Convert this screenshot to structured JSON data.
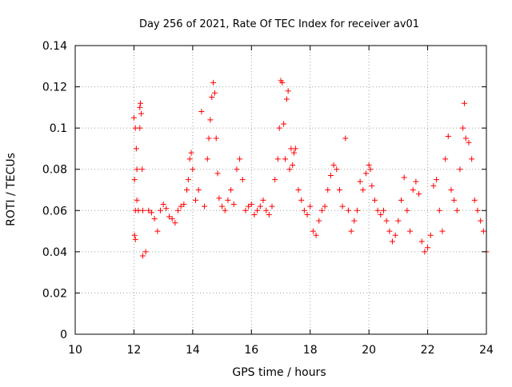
{
  "chart_data": {
    "type": "scatter",
    "title": "Day 256 of 2021, Rate Of TEC Index for receiver av01",
    "xlabel": "GPS time / hours",
    "ylabel": "ROTI / TECUs",
    "xlim": [
      10,
      24
    ],
    "ylim": [
      0,
      0.14
    ],
    "xticks": [
      "10",
      "12",
      "14",
      "16",
      "18",
      "20",
      "22",
      "24"
    ],
    "yticks": [
      "0",
      "0.02",
      "0.04",
      "0.06",
      "0.08",
      "0.1",
      "0.12",
      "0.14"
    ],
    "grid": true,
    "marker": "+",
    "color": "#ff0000",
    "series": [
      {
        "name": "",
        "points": [
          [
            12.0,
            0.105
          ],
          [
            12.05,
            0.1
          ],
          [
            12.08,
            0.09
          ],
          [
            12.1,
            0.08
          ],
          [
            12.02,
            0.075
          ],
          [
            12.1,
            0.065
          ],
          [
            12.05,
            0.06
          ],
          [
            12.15,
            0.06
          ],
          [
            12.2,
            0.11
          ],
          [
            12.22,
            0.112
          ],
          [
            12.25,
            0.107
          ],
          [
            12.2,
            0.1
          ],
          [
            12.28,
            0.08
          ],
          [
            12.3,
            0.06
          ],
          [
            12.02,
            0.048
          ],
          [
            12.05,
            0.046
          ],
          [
            12.3,
            0.038
          ],
          [
            12.4,
            0.04
          ],
          [
            12.5,
            0.06
          ],
          [
            12.6,
            0.059
          ],
          [
            12.7,
            0.056
          ],
          [
            12.8,
            0.05
          ],
          [
            12.9,
            0.06
          ],
          [
            13.0,
            0.063
          ],
          [
            13.1,
            0.061
          ],
          [
            13.2,
            0.057
          ],
          [
            13.3,
            0.056
          ],
          [
            13.4,
            0.054
          ],
          [
            13.5,
            0.06
          ],
          [
            13.6,
            0.062
          ],
          [
            13.7,
            0.063
          ],
          [
            13.8,
            0.07
          ],
          [
            13.85,
            0.075
          ],
          [
            13.9,
            0.085
          ],
          [
            13.95,
            0.088
          ],
          [
            14.0,
            0.08
          ],
          [
            14.1,
            0.065
          ],
          [
            14.2,
            0.07
          ],
          [
            14.3,
            0.108
          ],
          [
            14.4,
            0.062
          ],
          [
            14.5,
            0.085
          ],
          [
            14.55,
            0.095
          ],
          [
            14.6,
            0.104
          ],
          [
            14.65,
            0.115
          ],
          [
            14.7,
            0.122
          ],
          [
            14.75,
            0.117
          ],
          [
            14.8,
            0.095
          ],
          [
            14.85,
            0.078
          ],
          [
            14.9,
            0.066
          ],
          [
            15.0,
            0.062
          ],
          [
            15.1,
            0.06
          ],
          [
            15.2,
            0.065
          ],
          [
            15.3,
            0.07
          ],
          [
            15.4,
            0.063
          ],
          [
            15.5,
            0.08
          ],
          [
            15.6,
            0.085
          ],
          [
            15.7,
            0.075
          ],
          [
            15.8,
            0.06
          ],
          [
            15.9,
            0.062
          ],
          [
            16.0,
            0.063
          ],
          [
            16.1,
            0.058
          ],
          [
            16.2,
            0.06
          ],
          [
            16.3,
            0.062
          ],
          [
            16.4,
            0.065
          ],
          [
            16.5,
            0.06
          ],
          [
            16.6,
            0.058
          ],
          [
            16.7,
            0.062
          ],
          [
            16.8,
            0.075
          ],
          [
            16.9,
            0.085
          ],
          [
            16.95,
            0.1
          ],
          [
            17.0,
            0.123
          ],
          [
            17.05,
            0.122
          ],
          [
            17.1,
            0.102
          ],
          [
            17.15,
            0.085
          ],
          [
            17.2,
            0.114
          ],
          [
            17.25,
            0.118
          ],
          [
            17.3,
            0.08
          ],
          [
            17.35,
            0.09
          ],
          [
            17.4,
            0.082
          ],
          [
            17.45,
            0.088
          ],
          [
            17.5,
            0.09
          ],
          [
            17.6,
            0.07
          ],
          [
            17.7,
            0.065
          ],
          [
            17.8,
            0.06
          ],
          [
            17.9,
            0.058
          ],
          [
            18.0,
            0.062
          ],
          [
            18.1,
            0.05
          ],
          [
            18.2,
            0.048
          ],
          [
            18.3,
            0.055
          ],
          [
            18.4,
            0.06
          ],
          [
            18.5,
            0.062
          ],
          [
            18.6,
            0.07
          ],
          [
            18.7,
            0.077
          ],
          [
            18.8,
            0.082
          ],
          [
            18.9,
            0.08
          ],
          [
            19.0,
            0.07
          ],
          [
            19.1,
            0.062
          ],
          [
            19.2,
            0.095
          ],
          [
            19.3,
            0.06
          ],
          [
            19.4,
            0.05
          ],
          [
            19.5,
            0.055
          ],
          [
            19.6,
            0.06
          ],
          [
            19.7,
            0.074
          ],
          [
            19.8,
            0.07
          ],
          [
            19.9,
            0.078
          ],
          [
            20.0,
            0.082
          ],
          [
            20.05,
            0.08
          ],
          [
            20.1,
            0.072
          ],
          [
            20.2,
            0.065
          ],
          [
            20.3,
            0.06
          ],
          [
            20.4,
            0.058
          ],
          [
            20.5,
            0.06
          ],
          [
            20.6,
            0.055
          ],
          [
            20.7,
            0.05
          ],
          [
            20.8,
            0.045
          ],
          [
            20.9,
            0.048
          ],
          [
            21.0,
            0.055
          ],
          [
            21.1,
            0.065
          ],
          [
            21.2,
            0.076
          ],
          [
            21.3,
            0.06
          ],
          [
            21.4,
            0.05
          ],
          [
            21.5,
            0.07
          ],
          [
            21.6,
            0.074
          ],
          [
            21.7,
            0.068
          ],
          [
            21.8,
            0.045
          ],
          [
            21.9,
            0.04
          ],
          [
            22.0,
            0.042
          ],
          [
            22.1,
            0.048
          ],
          [
            22.2,
            0.072
          ],
          [
            22.3,
            0.075
          ],
          [
            22.4,
            0.06
          ],
          [
            22.5,
            0.05
          ],
          [
            22.6,
            0.085
          ],
          [
            22.7,
            0.096
          ],
          [
            22.8,
            0.07
          ],
          [
            22.9,
            0.065
          ],
          [
            23.0,
            0.06
          ],
          [
            23.1,
            0.08
          ],
          [
            23.2,
            0.1
          ],
          [
            23.25,
            0.112
          ],
          [
            23.3,
            0.095
          ],
          [
            23.4,
            0.093
          ],
          [
            23.5,
            0.085
          ],
          [
            23.6,
            0.065
          ],
          [
            23.7,
            0.06
          ],
          [
            23.8,
            0.055
          ],
          [
            23.9,
            0.05
          ],
          [
            24.0,
            0.04
          ]
        ]
      }
    ]
  }
}
